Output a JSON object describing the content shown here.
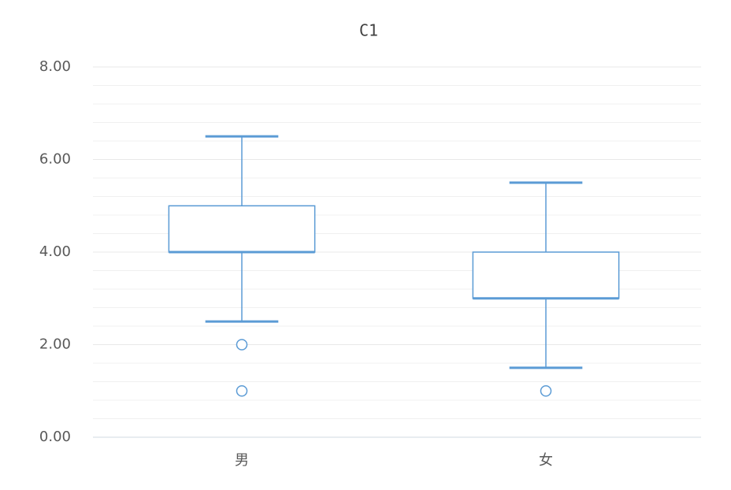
{
  "chart_data": {
    "type": "box",
    "title": "C1",
    "categories": [
      "男",
      "女"
    ],
    "boxes": [
      {
        "whisker_low": 2.5,
        "q1": 4,
        "median": 4,
        "q3": 5,
        "whisker_high": 6.5,
        "outliers": [
          2,
          1
        ]
      },
      {
        "whisker_low": 1.5,
        "q1": 3,
        "median": 3,
        "q3": 4,
        "whisker_high": 5.5,
        "outliers": [
          1
        ]
      }
    ],
    "color": "#5b9bd5",
    "ylim": [
      0,
      8
    ],
    "yticks": [
      {
        "value": 0,
        "label": "0.00"
      },
      {
        "value": 2,
        "label": "2.00"
      },
      {
        "value": 4,
        "label": "4.00"
      },
      {
        "value": 6,
        "label": "6.00"
      },
      {
        "value": 8,
        "label": "8.00"
      }
    ],
    "minor_yticks": [
      0.4,
      0.8,
      1.2,
      1.6,
      2.4,
      2.8,
      3.2,
      3.6,
      4.4,
      4.8,
      5.2,
      5.6,
      6.4,
      6.8,
      7.2,
      7.6
    ],
    "grid": true
  }
}
